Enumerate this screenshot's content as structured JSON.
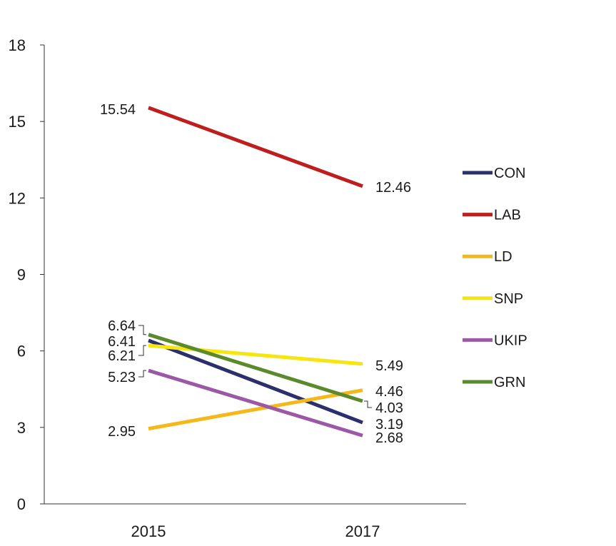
{
  "chart_data": {
    "type": "line",
    "title": "",
    "xlabel": "",
    "ylabel": "",
    "categories": [
      "2015",
      "2017"
    ],
    "ylim": [
      0,
      18
    ],
    "yticks": [
      "0",
      "3",
      "6",
      "9",
      "12",
      "15",
      "18"
    ],
    "grid": false,
    "legend_position": "right",
    "series": [
      {
        "name": "CON",
        "color": "#2b2f6b",
        "values": [
          6.41,
          3.19
        ],
        "labels": [
          "6.41",
          "3.19"
        ]
      },
      {
        "name": "LAB",
        "color": "#be1e1e",
        "values": [
          15.54,
          12.46
        ],
        "labels": [
          "15.54",
          "12.46"
        ]
      },
      {
        "name": "LD",
        "color": "#f5b81b",
        "values": [
          2.95,
          4.46
        ],
        "labels": [
          "2.95",
          "4.46"
        ]
      },
      {
        "name": "SNP",
        "color": "#f5e60f",
        "values": [
          6.21,
          5.49
        ],
        "labels": [
          "6.21",
          "5.49"
        ]
      },
      {
        "name": "UKIP",
        "color": "#9b59a5",
        "values": [
          5.23,
          2.68
        ],
        "labels": [
          "5.23",
          "2.68"
        ]
      },
      {
        "name": "GRN",
        "color": "#5a8a2b",
        "values": [
          6.64,
          4.03
        ],
        "labels": [
          "6.64",
          "4.03"
        ]
      }
    ]
  }
}
